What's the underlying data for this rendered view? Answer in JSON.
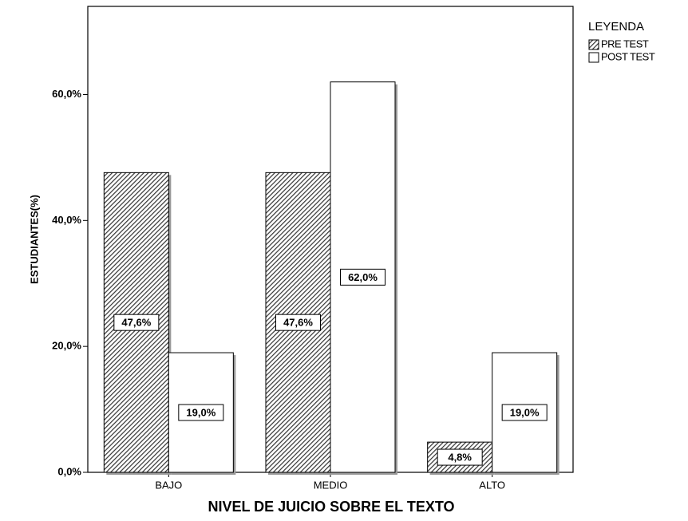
{
  "chart_data": {
    "type": "bar",
    "xlabel": "NIVEL DE JUICIO SOBRE EL TEXTO",
    "ylabel": "ESTUDIANTES(%)",
    "categories": [
      "BAJO",
      "MEDIO",
      "ALTO"
    ],
    "series": [
      {
        "name": "PRE TEST",
        "color": "#333333",
        "hatch": true,
        "values": [
          47.6,
          47.6,
          4.8
        ],
        "value_labels": [
          "47,6%",
          "47,6%",
          "4,8%"
        ]
      },
      {
        "name": "POST TEST",
        "color": "#ffffff",
        "hatch": false,
        "values": [
          19.0,
          62.0,
          19.0
        ],
        "value_labels": [
          "19,0%",
          "62,0%",
          "19,0%"
        ]
      }
    ],
    "ylim": [
      0,
      74
    ],
    "yticks": [
      {
        "value": 0,
        "label": "0,0%"
      },
      {
        "value": 20,
        "label": "20,0%"
      },
      {
        "value": 40,
        "label": "40,0%"
      },
      {
        "value": 60,
        "label": "60,0%"
      }
    ],
    "legend_title": "LEYENDA",
    "legend": "top-right",
    "grid": false
  }
}
